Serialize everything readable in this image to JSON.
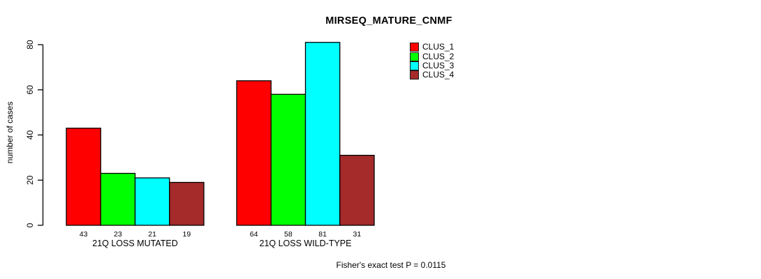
{
  "chart_data": {
    "type": "bar",
    "title": "MIRSEQ_MATURE_CNMF",
    "ylabel": "number of cases",
    "xlabel": "",
    "ylim": [
      0,
      80
    ],
    "yticks": [
      0,
      20,
      40,
      60,
      80
    ],
    "grid": false,
    "legend_position": "top-right",
    "categories": [
      "21Q LOSS MUTATED",
      "21Q LOSS WILD-TYPE"
    ],
    "series": [
      {
        "name": "CLUS_1",
        "color": "#ff0000",
        "values": [
          43,
          64
        ]
      },
      {
        "name": "CLUS_2",
        "color": "#00ff00",
        "values": [
          23,
          58
        ]
      },
      {
        "name": "CLUS_3",
        "color": "#00ffff",
        "values": [
          21,
          81
        ]
      },
      {
        "name": "CLUS_4",
        "color": "#a52a2a",
        "values": [
          19,
          31
        ]
      }
    ],
    "bar_value_labels": [
      [
        43,
        23,
        21,
        19
      ],
      [
        64,
        58,
        81,
        31
      ]
    ],
    "annotation": "Fisher's exact test P = 0.0115"
  },
  "colors": {
    "background": "#ffffff",
    "axis": "#000000",
    "bar_border": "#000000",
    "text": "#000000"
  }
}
